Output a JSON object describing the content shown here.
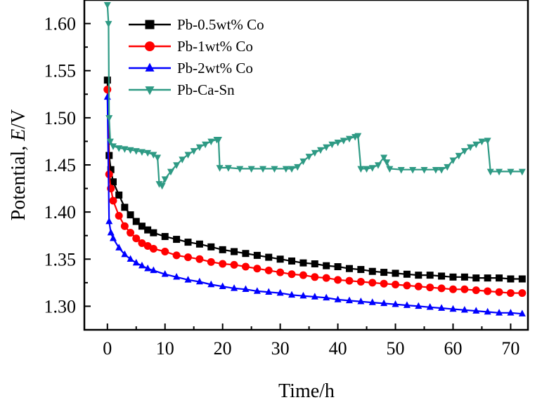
{
  "chart_data": {
    "type": "line",
    "xlabel": "Time/h",
    "ylabel_prefix": "Potential, ",
    "ylabel_var": "E",
    "ylabel_suffix": "/V",
    "xlim": [
      -4,
      73
    ],
    "ylim": [
      1.275,
      1.625
    ],
    "x_ticks": [
      0,
      10,
      20,
      30,
      40,
      50,
      60,
      70
    ],
    "y_ticks": [
      1.3,
      1.35,
      1.4,
      1.45,
      1.5,
      1.55,
      1.6
    ],
    "y_tick_labels": [
      "1.30",
      "1.35",
      "1.40",
      "1.45",
      "1.50",
      "1.55",
      "1.60"
    ],
    "grid": false,
    "legend_position": "top-left",
    "series": [
      {
        "name": "Pb-0.5wt% Co",
        "color": "#000000",
        "marker": "square",
        "points": [
          [
            0,
            1.54
          ],
          [
            0.3,
            1.46
          ],
          [
            0.6,
            1.445
          ],
          [
            1,
            1.432
          ],
          [
            2,
            1.418
          ],
          [
            3,
            1.405
          ],
          [
            4,
            1.397
          ],
          [
            5,
            1.39
          ],
          [
            6,
            1.385
          ],
          [
            7,
            1.381
          ],
          [
            8,
            1.378
          ],
          [
            10,
            1.374
          ],
          [
            12,
            1.371
          ],
          [
            14,
            1.368
          ],
          [
            16,
            1.366
          ],
          [
            18,
            1.363
          ],
          [
            20,
            1.36
          ],
          [
            22,
            1.358
          ],
          [
            24,
            1.356
          ],
          [
            26,
            1.354
          ],
          [
            28,
            1.352
          ],
          [
            30,
            1.35
          ],
          [
            32,
            1.348
          ],
          [
            34,
            1.346
          ],
          [
            36,
            1.345
          ],
          [
            38,
            1.343
          ],
          [
            40,
            1.342
          ],
          [
            42,
            1.34
          ],
          [
            44,
            1.339
          ],
          [
            46,
            1.337
          ],
          [
            48,
            1.336
          ],
          [
            50,
            1.335
          ],
          [
            52,
            1.334
          ],
          [
            54,
            1.333
          ],
          [
            56,
            1.333
          ],
          [
            58,
            1.332
          ],
          [
            60,
            1.331
          ],
          [
            62,
            1.331
          ],
          [
            64,
            1.33
          ],
          [
            66,
            1.33
          ],
          [
            68,
            1.33
          ],
          [
            70,
            1.329
          ],
          [
            72,
            1.329
          ]
        ]
      },
      {
        "name": "Pb-1wt% Co",
        "color": "#ff0000",
        "marker": "circle",
        "points": [
          [
            0,
            1.53
          ],
          [
            0.3,
            1.44
          ],
          [
            0.6,
            1.425
          ],
          [
            1,
            1.412
          ],
          [
            2,
            1.396
          ],
          [
            3,
            1.385
          ],
          [
            4,
            1.378
          ],
          [
            5,
            1.372
          ],
          [
            6,
            1.367
          ],
          [
            7,
            1.364
          ],
          [
            8,
            1.361
          ],
          [
            10,
            1.358
          ],
          [
            12,
            1.354
          ],
          [
            14,
            1.352
          ],
          [
            16,
            1.35
          ],
          [
            18,
            1.347
          ],
          [
            20,
            1.345
          ],
          [
            22,
            1.344
          ],
          [
            24,
            1.342
          ],
          [
            26,
            1.34
          ],
          [
            28,
            1.338
          ],
          [
            30,
            1.336
          ],
          [
            32,
            1.334
          ],
          [
            34,
            1.333
          ],
          [
            36,
            1.331
          ],
          [
            38,
            1.33
          ],
          [
            40,
            1.328
          ],
          [
            42,
            1.327
          ],
          [
            44,
            1.326
          ],
          [
            46,
            1.325
          ],
          [
            48,
            1.324
          ],
          [
            50,
            1.323
          ],
          [
            52,
            1.322
          ],
          [
            54,
            1.321
          ],
          [
            56,
            1.32
          ],
          [
            58,
            1.319
          ],
          [
            60,
            1.318
          ],
          [
            62,
            1.318
          ],
          [
            64,
            1.317
          ],
          [
            66,
            1.316
          ],
          [
            68,
            1.315
          ],
          [
            70,
            1.314
          ],
          [
            72,
            1.314
          ]
        ]
      },
      {
        "name": "Pb-2wt% Co",
        "color": "#0000ff",
        "marker": "triangle-up",
        "points": [
          [
            0,
            1.522
          ],
          [
            0.3,
            1.39
          ],
          [
            0.6,
            1.378
          ],
          [
            1,
            1.372
          ],
          [
            2,
            1.362
          ],
          [
            3,
            1.355
          ],
          [
            4,
            1.35
          ],
          [
            5,
            1.346
          ],
          [
            6,
            1.343
          ],
          [
            7,
            1.34
          ],
          [
            8,
            1.338
          ],
          [
            10,
            1.334
          ],
          [
            12,
            1.331
          ],
          [
            14,
            1.328
          ],
          [
            16,
            1.326
          ],
          [
            18,
            1.323
          ],
          [
            20,
            1.321
          ],
          [
            22,
            1.319
          ],
          [
            24,
            1.318
          ],
          [
            26,
            1.316
          ],
          [
            28,
            1.315
          ],
          [
            30,
            1.314
          ],
          [
            32,
            1.312
          ],
          [
            34,
            1.311
          ],
          [
            36,
            1.31
          ],
          [
            38,
            1.309
          ],
          [
            40,
            1.307
          ],
          [
            42,
            1.306
          ],
          [
            44,
            1.305
          ],
          [
            46,
            1.304
          ],
          [
            48,
            1.303
          ],
          [
            50,
            1.302
          ],
          [
            52,
            1.301
          ],
          [
            54,
            1.3
          ],
          [
            56,
            1.299
          ],
          [
            58,
            1.298
          ],
          [
            60,
            1.297
          ],
          [
            62,
            1.296
          ],
          [
            64,
            1.295
          ],
          [
            66,
            1.294
          ],
          [
            68,
            1.293
          ],
          [
            70,
            1.293
          ],
          [
            72,
            1.292
          ]
        ]
      },
      {
        "name": "Pb-Ca-Sn",
        "color": "#2e9a84",
        "marker": "triangle-down",
        "points": [
          [
            0,
            1.62
          ],
          [
            0.2,
            1.6
          ],
          [
            0.3,
            1.5
          ],
          [
            0.5,
            1.475
          ],
          [
            1,
            1.47
          ],
          [
            2,
            1.468
          ],
          [
            3,
            1.467
          ],
          [
            4,
            1.466
          ],
          [
            5,
            1.465
          ],
          [
            6,
            1.464
          ],
          [
            7,
            1.463
          ],
          [
            8,
            1.461
          ],
          [
            8.7,
            1.458
          ],
          [
            9,
            1.43
          ],
          [
            9.5,
            1.428
          ],
          [
            10,
            1.435
          ],
          [
            11,
            1.443
          ],
          [
            12,
            1.45
          ],
          [
            13,
            1.456
          ],
          [
            14,
            1.461
          ],
          [
            15,
            1.465
          ],
          [
            16,
            1.469
          ],
          [
            17,
            1.472
          ],
          [
            18,
            1.475
          ],
          [
            19,
            1.477
          ],
          [
            19.3,
            1.477
          ],
          [
            19.5,
            1.447
          ],
          [
            21,
            1.447
          ],
          [
            23,
            1.446
          ],
          [
            25,
            1.446
          ],
          [
            27,
            1.446
          ],
          [
            29,
            1.446
          ],
          [
            31,
            1.446
          ],
          [
            32,
            1.446
          ],
          [
            33,
            1.448
          ],
          [
            34,
            1.454
          ],
          [
            35,
            1.459
          ],
          [
            36,
            1.463
          ],
          [
            37,
            1.466
          ],
          [
            38,
            1.469
          ],
          [
            39,
            1.472
          ],
          [
            40,
            1.474
          ],
          [
            41,
            1.476
          ],
          [
            42,
            1.478
          ],
          [
            43,
            1.48
          ],
          [
            43.5,
            1.481
          ],
          [
            44,
            1.446
          ],
          [
            45,
            1.446
          ],
          [
            46,
            1.447
          ],
          [
            47,
            1.45
          ],
          [
            48,
            1.458
          ],
          [
            48.5,
            1.453
          ],
          [
            49,
            1.446
          ],
          [
            51,
            1.445
          ],
          [
            53,
            1.445
          ],
          [
            55,
            1.445
          ],
          [
            57,
            1.445
          ],
          [
            58,
            1.445
          ],
          [
            59,
            1.448
          ],
          [
            60,
            1.455
          ],
          [
            61,
            1.46
          ],
          [
            62,
            1.465
          ],
          [
            63,
            1.469
          ],
          [
            64,
            1.472
          ],
          [
            65,
            1.475
          ],
          [
            66,
            1.476
          ],
          [
            66.5,
            1.443
          ],
          [
            68,
            1.443
          ],
          [
            70,
            1.443
          ],
          [
            72,
            1.443
          ]
        ]
      }
    ]
  }
}
